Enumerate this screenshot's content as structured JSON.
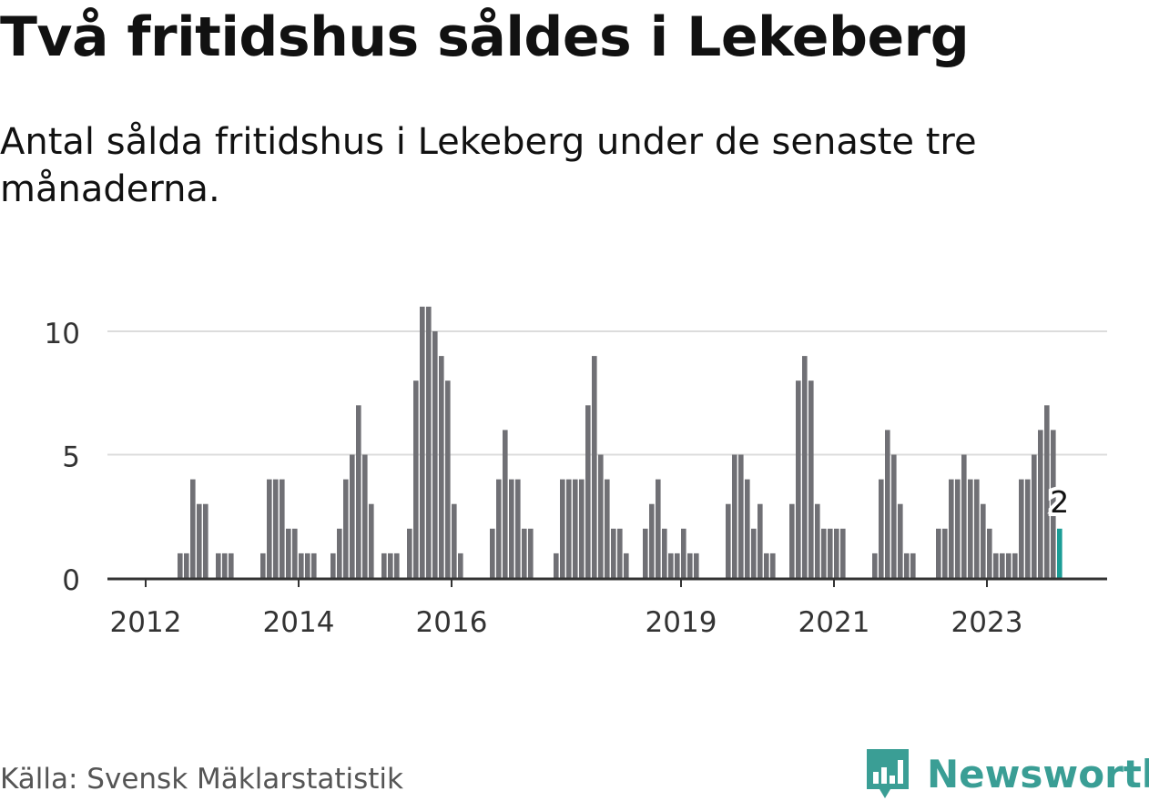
{
  "title": "Två fritidshus såldes i Lekeberg",
  "subtitle": "Antal sålda fritidshus i Lekeberg under de senaste tre månaderna.",
  "source": "Källa: Svensk Mäklarstatistik",
  "brand": {
    "name": "Newsworthy",
    "icon": "newsworthy-logo-icon",
    "color": "#3a9e95"
  },
  "chart_data": {
    "type": "bar",
    "ylim": [
      0,
      11
    ],
    "yticks": [
      0,
      5,
      10
    ],
    "grid": true,
    "colors": {
      "bars": "#707075",
      "highlight": "#1b9d96",
      "grid": "#dcdcdc",
      "axis": "#333333"
    },
    "xtick_labels": [
      {
        "label": "2012",
        "index": 6
      },
      {
        "label": "2014",
        "index": 30
      },
      {
        "label": "2016",
        "index": 54
      },
      {
        "label": "2019",
        "index": 90
      },
      {
        "label": "2021",
        "index": 114
      },
      {
        "label": "2023",
        "index": 138
      }
    ],
    "values": [
      0,
      0,
      0,
      0,
      0,
      0,
      0,
      0,
      0,
      0,
      0,
      1,
      1,
      4,
      3,
      3,
      0,
      1,
      1,
      1,
      0,
      0,
      0,
      0,
      1,
      4,
      4,
      4,
      2,
      2,
      1,
      1,
      1,
      0,
      0,
      1,
      2,
      4,
      5,
      7,
      5,
      3,
      0,
      1,
      1,
      1,
      0,
      2,
      8,
      11,
      11,
      10,
      9,
      8,
      3,
      1,
      0,
      0,
      0,
      0,
      2,
      4,
      6,
      4,
      4,
      2,
      2,
      0,
      0,
      0,
      1,
      4,
      4,
      4,
      4,
      7,
      9,
      5,
      4,
      2,
      2,
      1,
      0,
      0,
      2,
      3,
      4,
      2,
      1,
      1,
      2,
      1,
      1,
      0,
      0,
      0,
      0,
      3,
      5,
      5,
      4,
      2,
      3,
      1,
      1,
      0,
      0,
      3,
      8,
      9,
      8,
      3,
      2,
      2,
      2,
      2,
      0,
      0,
      0,
      0,
      1,
      4,
      6,
      5,
      3,
      1,
      1,
      0,
      0,
      0,
      2,
      2,
      4,
      4,
      5,
      4,
      4,
      3,
      2,
      1,
      1,
      1,
      1,
      4,
      4,
      5,
      6,
      7,
      6,
      2
    ],
    "highlight_index": 149,
    "highlight_label": "2"
  }
}
